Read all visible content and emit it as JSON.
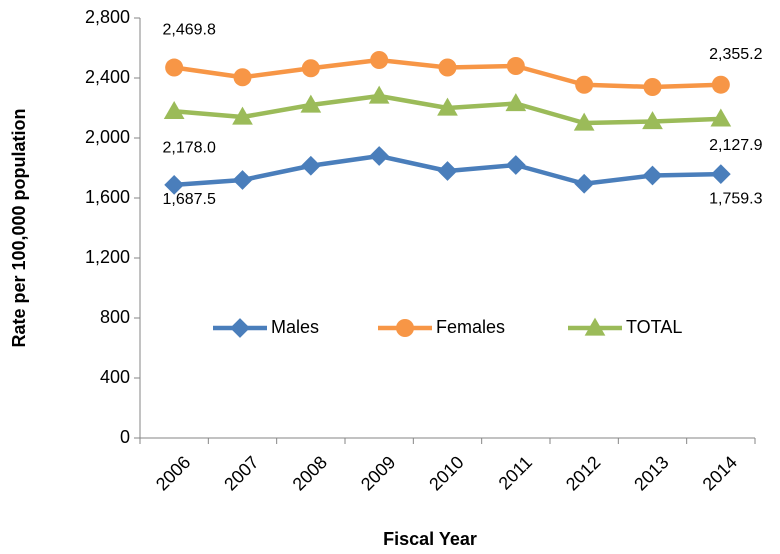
{
  "chart_data": {
    "type": "line",
    "xlabel": "Fiscal Year",
    "ylabel": "Rate per 100,000 population",
    "categories": [
      "2006",
      "2007",
      "2008",
      "2009",
      "2010",
      "2011",
      "2012",
      "2013",
      "2014"
    ],
    "series": [
      {
        "name": "Males",
        "color": "#4a7ebb",
        "marker": "diamond",
        "values": [
          1687.5,
          1720,
          1815,
          1880,
          1780,
          1820,
          1695,
          1750,
          1759.3
        ],
        "value_labels": [
          "1,687.5",
          null,
          null,
          null,
          null,
          null,
          null,
          null,
          "1,759.3"
        ]
      },
      {
        "name": "Females",
        "color": "#f79646",
        "marker": "circle",
        "values": [
          2469.8,
          2405,
          2465,
          2520,
          2470,
          2480,
          2355,
          2340,
          2355.2
        ],
        "value_labels": [
          "2,469.8",
          null,
          null,
          null,
          null,
          null,
          null,
          null,
          "2,355.2"
        ]
      },
      {
        "name": "TOTAL",
        "color": "#9bbb59",
        "marker": "triangle",
        "values": [
          2178.0,
          2140,
          2220,
          2280,
          2200,
          2230,
          2100,
          2110,
          2127.9
        ],
        "value_labels": [
          "2,178.0",
          null,
          null,
          null,
          null,
          null,
          null,
          null,
          "2,127.9"
        ]
      }
    ],
    "ylim": [
      0,
      2800
    ],
    "yticks": [
      0,
      400,
      800,
      {
        "value": 1200,
        "label": "1,200"
      },
      {
        "value": 1600,
        "label": "1,600"
      },
      {
        "value": 2000,
        "label": "2,000"
      },
      {
        "value": 2400,
        "label": "2,400"
      },
      {
        "value": 2800,
        "label": "2,800"
      }
    ],
    "grid": false,
    "legend": "center"
  }
}
